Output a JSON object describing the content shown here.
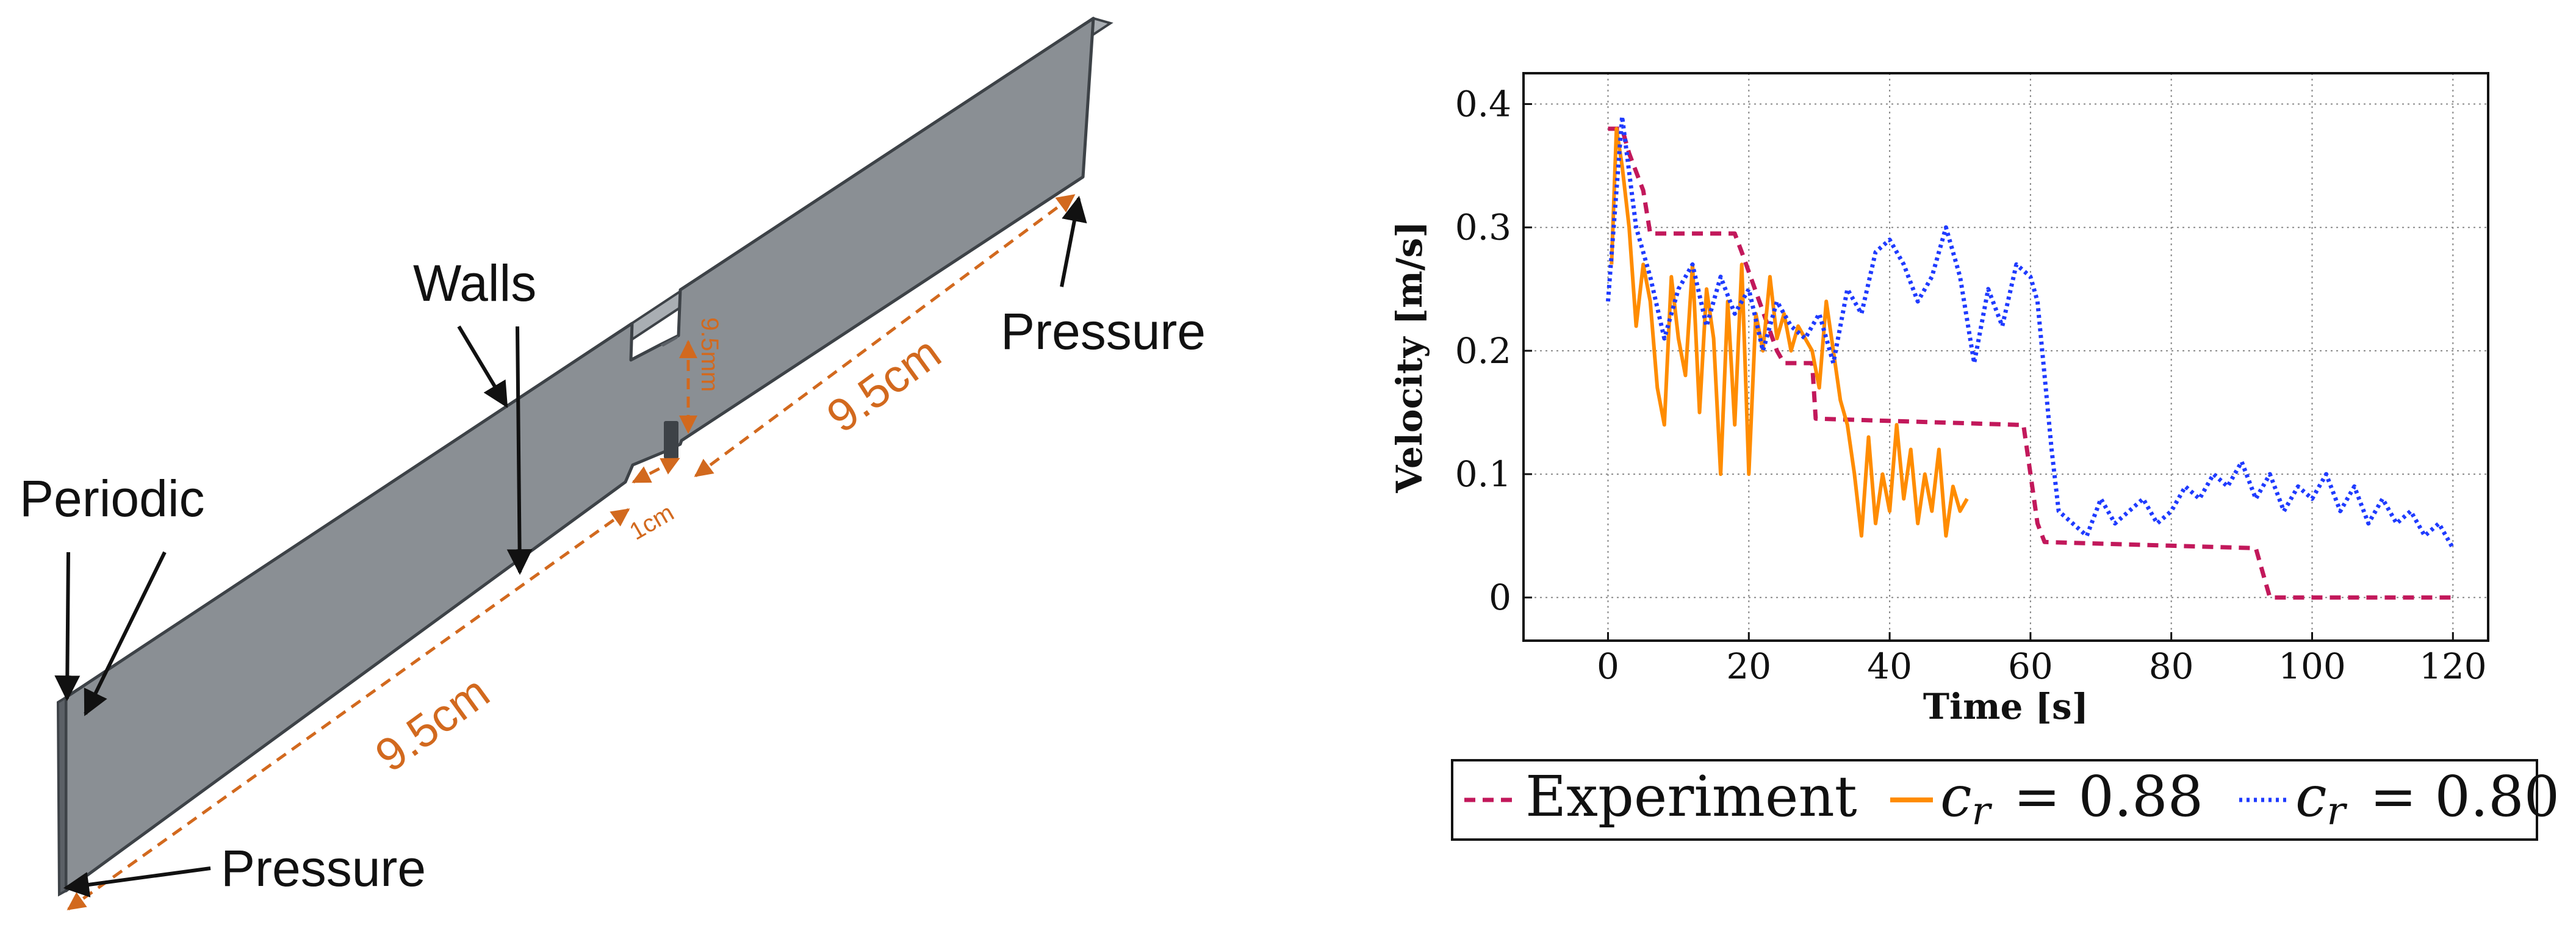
{
  "diagram": {
    "labels": {
      "walls": "Walls",
      "pressure_top": "Pressure",
      "periodic": "Periodic",
      "pressure_bottom": "Pressure"
    },
    "dimensions": {
      "length_upper": "9.5cm",
      "length_lower": "9.5cm",
      "gap": "9.5mm",
      "notch": "1cm"
    },
    "colors": {
      "geometry": "#8a8f94",
      "geometry_edge": "#3d4247",
      "dimension": "#d2691e"
    }
  },
  "chart_data": {
    "type": "line",
    "title": "",
    "xlabel": "Time [s]",
    "ylabel": "Velocity [m/s]",
    "xlim": [
      -12,
      125
    ],
    "ylim": [
      -0.035,
      0.425
    ],
    "xticks": [
      0,
      20,
      40,
      60,
      80,
      100,
      120
    ],
    "xtick_labels": [
      "0",
      "20",
      "40",
      "60",
      "80",
      "100",
      "120"
    ],
    "yticks": [
      0,
      0.1,
      0.2,
      0.3,
      0.4
    ],
    "ytick_labels": [
      "0",
      "0.1",
      "0.2",
      "0.3",
      "0.4"
    ],
    "grid": true,
    "legend_position": "bottom",
    "legend": {
      "experiment": "Experiment",
      "cr088": "= 0.88",
      "cr080": "= 0.80",
      "symbol_c": "c",
      "symbol_r": "r"
    },
    "series": [
      {
        "name": "Experiment",
        "color": "#c2185b",
        "style": "dashed",
        "x": [
          0,
          2,
          3,
          5,
          6,
          18,
          19,
          24,
          25,
          26,
          29,
          29.5,
          58,
          59,
          61,
          62,
          92,
          93,
          94,
          120
        ],
        "y": [
          0.38,
          0.38,
          0.36,
          0.33,
          0.295,
          0.295,
          0.28,
          0.2,
          0.19,
          0.19,
          0.19,
          0.145,
          0.14,
          0.14,
          0.06,
          0.045,
          0.04,
          0.02,
          0,
          0
        ]
      },
      {
        "name": "c_r = 0.88",
        "color": "#ff8c00",
        "style": "solid",
        "x": [
          0.5,
          1.2,
          2,
          3,
          4,
          5,
          6,
          7,
          8,
          9,
          10,
          11,
          12,
          13,
          14,
          15,
          16,
          17,
          18,
          19,
          20,
          21,
          22,
          23,
          24,
          25,
          26,
          27,
          28,
          29,
          30,
          31,
          32,
          33,
          34,
          35,
          36,
          37,
          38,
          39,
          40,
          41,
          42,
          43,
          44,
          45,
          46,
          47,
          48,
          49,
          50,
          51
        ],
        "y": [
          0.27,
          0.38,
          0.35,
          0.3,
          0.22,
          0.27,
          0.24,
          0.17,
          0.14,
          0.26,
          0.21,
          0.18,
          0.27,
          0.15,
          0.25,
          0.21,
          0.1,
          0.24,
          0.14,
          0.27,
          0.1,
          0.23,
          0.2,
          0.26,
          0.21,
          0.23,
          0.2,
          0.22,
          0.21,
          0.2,
          0.17,
          0.24,
          0.2,
          0.16,
          0.14,
          0.1,
          0.05,
          0.13,
          0.06,
          0.1,
          0.07,
          0.14,
          0.08,
          0.12,
          0.06,
          0.1,
          0.07,
          0.12,
          0.05,
          0.09,
          0.07,
          0.08
        ]
      },
      {
        "name": "c_r = 0.80",
        "color": "#1f3bff",
        "style": "dotted",
        "x": [
          0,
          2,
          4,
          6,
          8,
          10,
          12,
          14,
          16,
          18,
          20,
          22,
          24,
          26,
          28,
          30,
          32,
          34,
          36,
          38,
          40,
          42,
          44,
          46,
          48,
          50,
          52,
          54,
          56,
          58,
          60,
          61,
          62,
          63,
          64,
          66,
          68,
          70,
          72,
          74,
          76,
          78,
          80,
          82,
          84,
          86,
          88,
          90,
          92,
          94,
          96,
          98,
          100,
          102,
          104,
          106,
          108,
          110,
          112,
          114,
          116,
          118,
          120
        ],
        "y": [
          0.24,
          0.39,
          0.3,
          0.26,
          0.21,
          0.25,
          0.27,
          0.22,
          0.26,
          0.23,
          0.25,
          0.2,
          0.24,
          0.22,
          0.21,
          0.23,
          0.19,
          0.25,
          0.23,
          0.28,
          0.29,
          0.27,
          0.24,
          0.26,
          0.3,
          0.26,
          0.19,
          0.25,
          0.22,
          0.27,
          0.26,
          0.24,
          0.18,
          0.12,
          0.07,
          0.06,
          0.05,
          0.08,
          0.06,
          0.07,
          0.08,
          0.06,
          0.07,
          0.09,
          0.08,
          0.1,
          0.09,
          0.11,
          0.08,
          0.1,
          0.07,
          0.09,
          0.08,
          0.1,
          0.07,
          0.09,
          0.06,
          0.08,
          0.06,
          0.07,
          0.05,
          0.06,
          0.04
        ]
      }
    ]
  }
}
